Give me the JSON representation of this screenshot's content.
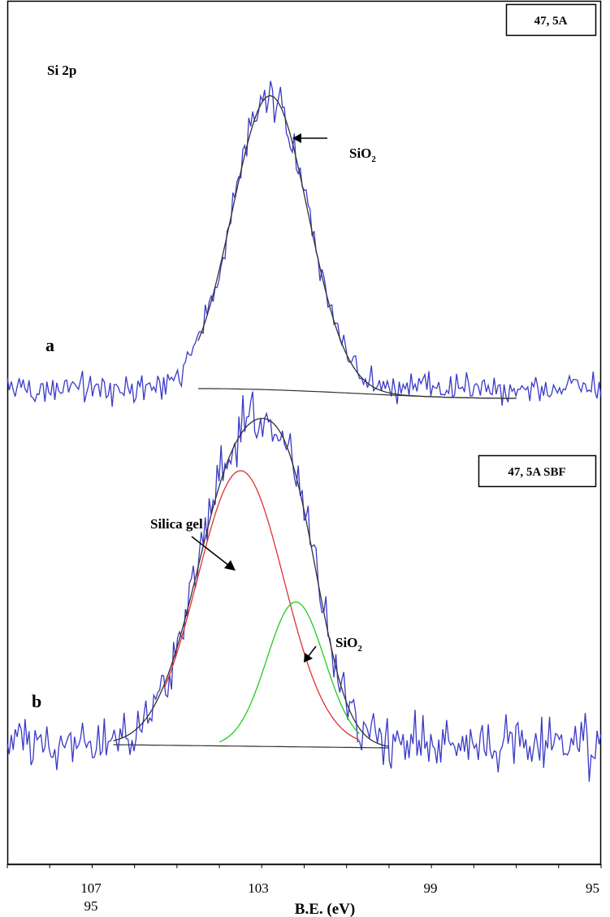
{
  "chart_data": [
    {
      "type": "line",
      "panel": "a",
      "panel_label": "a",
      "element_label": "Si 2p",
      "sample_label": "47, 5A",
      "xlabel": "B.E. (eV)",
      "xlim": [
        109,
        95
      ],
      "x_reversed": true,
      "x_ticks": [
        "107",
        "103",
        "99",
        "95"
      ],
      "x_tick_extra": "95",
      "y_axis": "arbitrary intensity (no scale shown)",
      "peaks": [
        {
          "name": "SiO₂",
          "label_main": "SiO",
          "label_sub": "2",
          "center_ev": 102.8,
          "fwhm_ev": 2.1,
          "height": 1.0,
          "color": "#333333"
        }
      ],
      "series": [
        {
          "name": "",
          "color": "#3a3ac8"
        },
        {
          "name": "",
          "color": "#333333"
        },
        {
          "name": "",
          "color": "#333333"
        }
      ],
      "fit_range_ev": [
        104.5,
        97.0
      ],
      "annotation": "←"
    },
    {
      "type": "line",
      "panel": "b",
      "panel_label": "b",
      "sample_label": "47, 5A SBF",
      "xlabel": "B.E. (eV)",
      "xlim": [
        109,
        95
      ],
      "x_reversed": true,
      "x_ticks": [
        "107",
        "103",
        "99",
        "95"
      ],
      "peaks": [
        {
          "name": "Silica gel",
          "label_main": "Silica gel",
          "center_ev": 103.5,
          "fwhm_ev": 2.4,
          "height": 1.0,
          "color": "#e03030"
        },
        {
          "name": "SiO₂",
          "label_main": "SiO",
          "label_sub": "2",
          "center_ev": 102.2,
          "fwhm_ev": 1.6,
          "height": 0.5,
          "color": "#22cc22"
        }
      ],
      "series": [
        {
          "name": "",
          "color": "#3a3ac8"
        },
        {
          "name": "",
          "color": "#333333"
        },
        {
          "name": "",
          "color": "#e03030"
        },
        {
          "name": "",
          "color": "#22cc22"
        },
        {
          "name": "",
          "color": "#333333"
        }
      ],
      "fit_range_ev": [
        106.5,
        100.0
      ]
    }
  ],
  "colors": {
    "raw": "#3a3ac8",
    "envelope": "#333333",
    "silica_gel": "#e03030",
    "sio2_component": "#22cc22",
    "frame": "#000000"
  }
}
